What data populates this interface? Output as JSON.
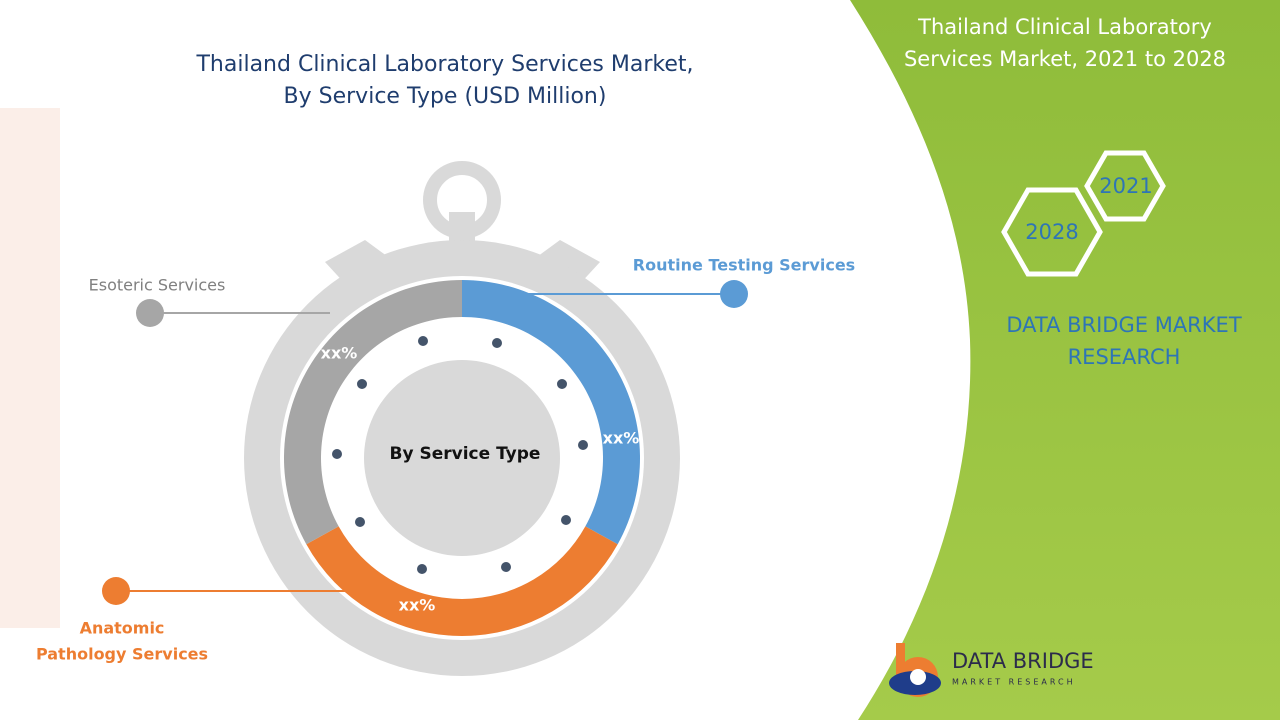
{
  "title": {
    "lines": [
      "Thailand Clinical Laboratory Services Market,",
      "By Service Type (USD Million)"
    ]
  },
  "panel": {
    "title_lines": [
      "Thailand Clinical Laboratory",
      "Services Market, 2021 to 2028"
    ],
    "years": [
      "2021",
      "2028"
    ],
    "brand_lines": [
      "DATA BRIDGE MARKET",
      "RESEARCH"
    ]
  },
  "diagram": {
    "center_label": "By Service Type",
    "segments": [
      {
        "name_lines": [
          "Routine Testing Services"
        ],
        "label": "xx%"
      },
      {
        "name_lines": [
          "Anatomic",
          "Pathology Services"
        ],
        "label": "xx%"
      },
      {
        "name_lines": [
          "Esoteric Services"
        ],
        "label": "xx%"
      }
    ]
  },
  "logo": {
    "name": "DATA BRIDGE",
    "tagline": "MARKET RESEARCH"
  }
}
